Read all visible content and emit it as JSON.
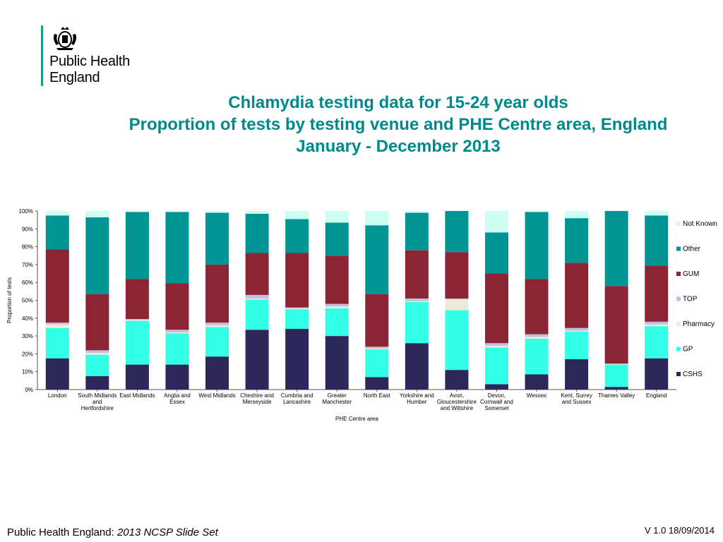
{
  "logo": {
    "line1": "Public Health",
    "line2": "England"
  },
  "title": {
    "line1": "Chlamydia testing data for 15-24 year olds",
    "line2": "Proportion of tests by testing venue and PHE Centre area, England",
    "line3": "January - December 2013"
  },
  "chart_data": {
    "type": "bar",
    "stacked": true,
    "xlabel": "PHE Centre area",
    "ylabel": "Proportion of tests",
    "ylim": [
      0,
      100
    ],
    "yticks": [
      "0%",
      "10%",
      "20%",
      "30%",
      "40%",
      "50%",
      "60%",
      "70%",
      "80%",
      "90%",
      "100%"
    ],
    "grid": false,
    "legend_position": "right",
    "categories": [
      [
        "London"
      ],
      [
        "South Midlands",
        "and",
        "Hertfordshire"
      ],
      [
        "East Midlands"
      ],
      [
        "Anglia and",
        "Essex"
      ],
      [
        "West Midlands"
      ],
      [
        "Cheshire and",
        "Merseyside"
      ],
      [
        "Cumbria and",
        "Lancashire"
      ],
      [
        "Greater",
        "Manchester"
      ],
      [
        "North East"
      ],
      [
        "Yorkshire and",
        "Humber"
      ],
      [
        "Avon,",
        "Gloucestershire",
        "and Wiltshire"
      ],
      [
        "Devon,",
        "Cornwall and",
        "Somerset"
      ],
      [
        "Wessex"
      ],
      [
        "Kent, Surrey",
        "and  Sussex"
      ],
      [
        "Thames Valley"
      ],
      [
        "England"
      ]
    ],
    "series": [
      {
        "name": "CSHS",
        "color": "#2e2759",
        "values": [
          17.5,
          7.5,
          14,
          14,
          18.5,
          33.5,
          34,
          30,
          7,
          26,
          11,
          3,
          8.5,
          17,
          1.5,
          17.5
        ]
      },
      {
        "name": "GP",
        "color": "#33ffe6",
        "values": [
          17,
          12,
          24.5,
          17.5,
          16.5,
          17,
          11,
          15.5,
          15.5,
          23,
          33.5,
          20.5,
          20,
          15.5,
          12.5,
          18
        ]
      },
      {
        "name": "Pharmacy",
        "color": "#f0ead6",
        "values": [
          2,
          1,
          0.5,
          0.5,
          1,
          0.5,
          0.5,
          1,
          0.5,
          0.5,
          6,
          1,
          1,
          0.5,
          0.5,
          1
        ]
      },
      {
        "name": "TOP",
        "color": "#c2bfe0",
        "values": [
          1,
          1.5,
          0.5,
          1.5,
          1.5,
          2,
          0.5,
          1.5,
          1,
          1.5,
          0.5,
          1.5,
          1.5,
          1.5,
          0,
          1.5
        ]
      },
      {
        "name": "GUM",
        "color": "#8b2434",
        "values": [
          41,
          31.5,
          22.5,
          26,
          32.5,
          23.5,
          30.5,
          27,
          29.5,
          27,
          26,
          39,
          31,
          36.5,
          43.5,
          31.5
        ]
      },
      {
        "name": "Other",
        "color": "#009595",
        "values": [
          19,
          43,
          37.5,
          40,
          29,
          22,
          19,
          18.5,
          38.5,
          21,
          23,
          23,
          37.5,
          25,
          42,
          28
        ]
      },
      {
        "name": "Not Known",
        "color": "#ccfff2",
        "values": [
          2.5,
          3.5,
          0.5,
          0.5,
          1,
          1.5,
          4.5,
          6.5,
          8,
          1,
          0,
          12,
          0.5,
          4,
          0,
          2.5
        ]
      }
    ]
  },
  "footer": {
    "left_prefix": "Public Health England: ",
    "left_italic": "2013 NCSP Slide Set",
    "right": "V 1.0  18/09/2014"
  }
}
